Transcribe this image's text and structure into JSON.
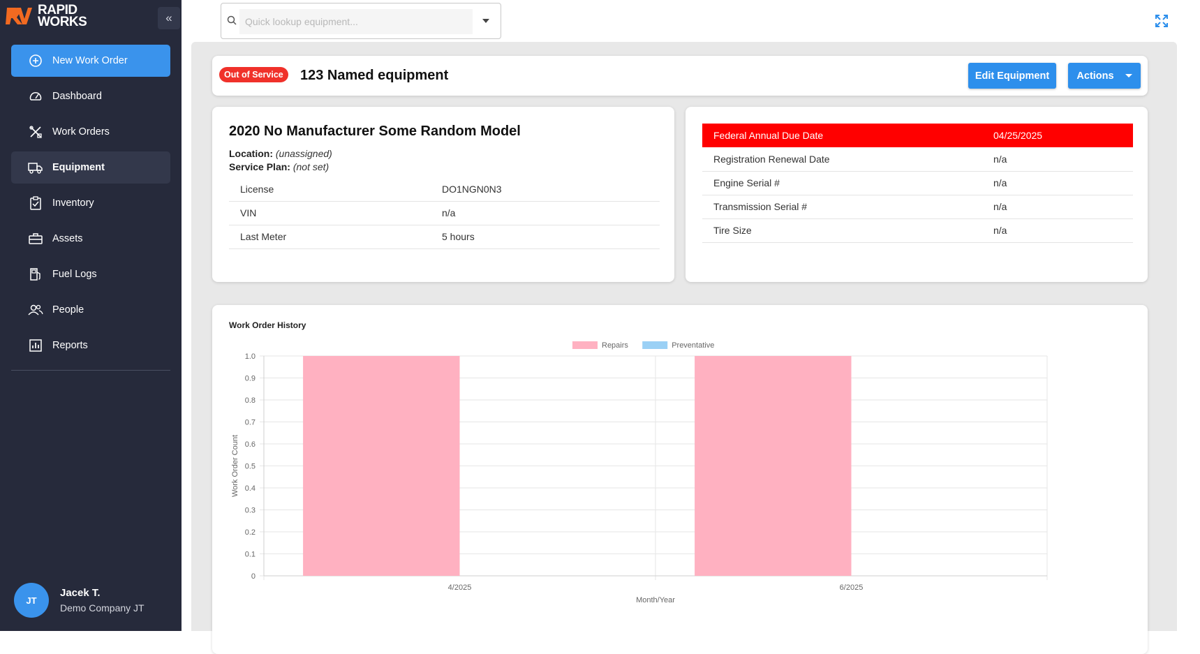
{
  "app": {
    "logo_line1": "RAPID",
    "logo_line2": "WORKS",
    "collapse_glyph": "«"
  },
  "sidebar": {
    "items": [
      {
        "label": "New Work Order",
        "icon": "plus-circle-icon"
      },
      {
        "label": "Dashboard",
        "icon": "speedometer-icon"
      },
      {
        "label": "Work Orders",
        "icon": "tools-icon"
      },
      {
        "label": "Equipment",
        "icon": "truck-icon"
      },
      {
        "label": "Inventory",
        "icon": "clipboard-check-icon"
      },
      {
        "label": "Assets",
        "icon": "toolbox-icon"
      },
      {
        "label": "Fuel Logs",
        "icon": "fuel-pump-icon"
      },
      {
        "label": "People",
        "icon": "people-icon"
      },
      {
        "label": "Reports",
        "icon": "bar-chart-icon"
      }
    ],
    "user": {
      "initials": "JT",
      "name": "Jacek T.",
      "company": "Demo Company JT"
    }
  },
  "search": {
    "placeholder": "Quick lookup equipment...",
    "value": ""
  },
  "header": {
    "status_badge": "Out of Service",
    "equipment_name": "123 Named equipment",
    "edit_label": "Edit Equipment",
    "actions_label": "Actions"
  },
  "info": {
    "model_title": "2020 No Manufacturer Some Random Model",
    "location_label": "Location:",
    "location_value": "(unassigned)",
    "service_plan_label": "Service Plan:",
    "service_plan_value": "(not set)",
    "rows": [
      {
        "label": "License",
        "value": "DO1NGN0N3"
      },
      {
        "label": "VIN",
        "value": "n/a"
      },
      {
        "label": "Last Meter",
        "value": "5 hours"
      }
    ]
  },
  "dates": {
    "rows": [
      {
        "label": "Federal Annual Due Date",
        "value": "04/25/2025"
      },
      {
        "label": "Registration Renewal Date",
        "value": "n/a"
      },
      {
        "label": "Engine Serial #",
        "value": "n/a"
      },
      {
        "label": "Transmission Serial #",
        "value": "n/a"
      },
      {
        "label": "Tire Size",
        "value": "n/a"
      }
    ],
    "alert_color": "#ff0000"
  },
  "chart_data": {
    "type": "bar",
    "title": "Work Order History",
    "xlabel": "Month/Year",
    "ylabel": "Work Order Count",
    "categories": [
      "4/2025",
      "6/2025"
    ],
    "series": [
      {
        "name": "Repairs",
        "values": [
          1,
          1
        ],
        "color": "#ffb1c1"
      },
      {
        "name": "Preventative",
        "values": [
          0,
          0
        ],
        "color": "#9ad0f5"
      }
    ],
    "ylim": [
      0,
      1
    ],
    "yticks": [
      "0",
      "0.1",
      "0.2",
      "0.3",
      "0.4",
      "0.5",
      "0.6",
      "0.7",
      "0.8",
      "0.9",
      "1.0"
    ],
    "legend": "top-center",
    "grid": true
  }
}
